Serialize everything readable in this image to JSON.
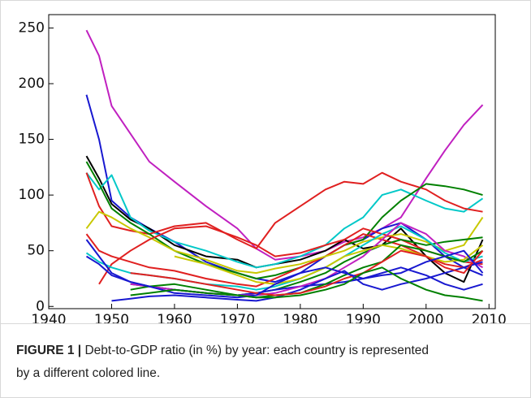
{
  "chart_data": {
    "type": "line",
    "caption": {
      "label": "FIGURE 1 |",
      "text": "Debt-to-GDP ratio (in %) by year: each country is represented by a different colored line."
    },
    "x": [
      1946,
      1948,
      1950,
      1953,
      1956,
      1960,
      1965,
      1970,
      1973,
      1976,
      1980,
      1984,
      1987,
      1990,
      1993,
      1996,
      2000,
      2003,
      2006,
      2009
    ],
    "xlim": [
      1940,
      2011
    ],
    "xticks": [
      1940,
      1950,
      1960,
      1970,
      1980,
      1990,
      2000,
      2010
    ],
    "ylim": [
      -2,
      262
    ],
    "yticks": [
      0,
      50,
      100,
      150,
      200,
      250
    ],
    "grid": false,
    "series": [
      {
        "color": "#c020c0",
        "values": [
          248,
          225,
          180,
          155,
          130,
          112,
          90,
          70,
          52,
          42,
          45,
          50,
          58,
          62,
          70,
          80,
          115,
          140,
          163,
          181
        ]
      },
      {
        "color": "#1818d0",
        "values": [
          190,
          150,
          95,
          80,
          70,
          58,
          40,
          30,
          25,
          22,
          30,
          45,
          55,
          60,
          70,
          75,
          60,
          45,
          35,
          28
        ]
      },
      {
        "color": "#000000",
        "values": [
          135,
          115,
          92,
          78,
          70,
          55,
          45,
          42,
          35,
          38,
          42,
          50,
          60,
          52,
          55,
          70,
          45,
          30,
          22,
          60
        ]
      },
      {
        "color": "#00c8c8",
        "values": [
          120,
          105,
          118,
          80,
          68,
          58,
          50,
          40,
          35,
          38,
          45,
          55,
          70,
          80,
          100,
          105,
          95,
          88,
          85,
          97
        ]
      },
      {
        "color": "#e02020",
        "values": [
          120,
          90,
          72,
          68,
          65,
          72,
          75,
          60,
          52,
          75,
          90,
          105,
          112,
          110,
          120,
          112,
          105,
          95,
          88,
          85
        ]
      },
      {
        "color": "#008000",
        "values": [
          130,
          110,
          88,
          75,
          65,
          50,
          38,
          30,
          25,
          28,
          35,
          45,
          55,
          60,
          80,
          95,
          110,
          108,
          105,
          100
        ]
      },
      {
        "color": "#e02020",
        "values": [
          65,
          50,
          45,
          40,
          35,
          32,
          25,
          20,
          18,
          25,
          35,
          45,
          55,
          65,
          60,
          55,
          45,
          38,
          35,
          42
        ]
      },
      {
        "color": "#c8c800",
        "values": [
          70,
          85,
          80,
          70,
          62,
          50,
          42,
          32,
          30,
          34,
          38,
          45,
          50,
          58,
          62,
          65,
          58,
          50,
          55,
          80
        ]
      },
      {
        "color": "#e02020",
        "values": [
          null,
          20,
          38,
          50,
          60,
          70,
          72,
          62,
          55,
          45,
          48,
          55,
          60,
          70,
          65,
          60,
          50,
          45,
          40,
          38
        ]
      },
      {
        "color": "#008000",
        "values": [
          null,
          null,
          null,
          20,
          18,
          15,
          12,
          10,
          12,
          15,
          22,
          30,
          40,
          48,
          55,
          60,
          55,
          58,
          60,
          62
        ]
      },
      {
        "color": "#1818d0",
        "values": [
          45,
          38,
          28,
          22,
          18,
          15,
          12,
          10,
          12,
          15,
          18,
          20,
          22,
          25,
          30,
          35,
          28,
          20,
          15,
          20
        ]
      },
      {
        "color": "#00c8c8",
        "values": [
          48,
          40,
          35,
          30,
          28,
          25,
          20,
          18,
          15,
          18,
          25,
          35,
          45,
          55,
          65,
          72,
          60,
          48,
          40,
          45
        ]
      },
      {
        "color": "#c020c0",
        "values": [
          null,
          null,
          null,
          20,
          18,
          15,
          12,
          10,
          10,
          12,
          18,
          25,
          35,
          45,
          60,
          75,
          65,
          50,
          45,
          35
        ]
      },
      {
        "color": "#c8c800",
        "values": [
          null,
          null,
          null,
          null,
          null,
          45,
          38,
          28,
          22,
          20,
          25,
          35,
          45,
          50,
          55,
          52,
          45,
          40,
          42,
          55
        ]
      },
      {
        "color": "#1818d0",
        "values": [
          null,
          null,
          5,
          7,
          9,
          10,
          8,
          6,
          5,
          8,
          15,
          25,
          32,
          20,
          15,
          20,
          25,
          30,
          35,
          40
        ]
      },
      {
        "color": "#008000",
        "values": [
          null,
          null,
          null,
          15,
          18,
          20,
          15,
          10,
          8,
          10,
          12,
          20,
          28,
          35,
          40,
          55,
          50,
          45,
          40,
          50
        ]
      },
      {
        "color": "#e02020",
        "values": [
          null,
          null,
          null,
          30,
          28,
          25,
          20,
          15,
          12,
          10,
          12,
          18,
          25,
          30,
          40,
          50,
          45,
          35,
          30,
          50
        ]
      },
      {
        "color": "#1818d0",
        "values": [
          60,
          45,
          30,
          22,
          18,
          12,
          10,
          8,
          10,
          20,
          30,
          35,
          30,
          25,
          28,
          30,
          40,
          45,
          50,
          30
        ]
      },
      {
        "color": "#008000",
        "values": [
          null,
          null,
          null,
          10,
          12,
          15,
          12,
          10,
          8,
          8,
          10,
          15,
          20,
          30,
          35,
          25,
          15,
          10,
          8,
          5
        ]
      }
    ]
  }
}
